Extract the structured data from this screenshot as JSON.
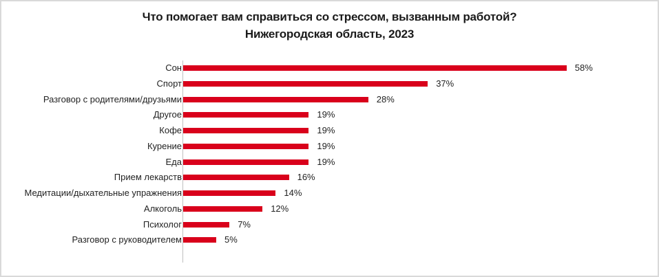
{
  "title": {
    "line1": "Что помогает вам справиться со стрессом, вызванным работой?",
    "line2": "Нижегородская область, 2023"
  },
  "colors": {
    "bar": "#d9001b",
    "axis": "#bfbfbf",
    "frame": "#d9d9d9"
  },
  "bars": [
    {
      "label": "Сон",
      "value": 58,
      "text": "58%"
    },
    {
      "label": "Спорт",
      "value": 37,
      "text": "37%"
    },
    {
      "label": "Разговор с родителями/друзьями",
      "value": 28,
      "text": "28%"
    },
    {
      "label": "Другое",
      "value": 19,
      "text": "19%"
    },
    {
      "label": "Кофе",
      "value": 19,
      "text": "19%"
    },
    {
      "label": "Курение",
      "value": 19,
      "text": "19%"
    },
    {
      "label": "Еда",
      "value": 19,
      "text": "19%"
    },
    {
      "label": "Прием лекарств",
      "value": 16,
      "text": "16%"
    },
    {
      "label": "Медитации/дыхательные упражнения",
      "value": 14,
      "text": "14%"
    },
    {
      "label": "Алкоголь",
      "value": 12,
      "text": "12%"
    },
    {
      "label": "Психолог",
      "value": 7,
      "text": "7%"
    },
    {
      "label": "Разговор с руководителем",
      "value": 5,
      "text": "5%"
    }
  ],
  "chart_data": {
    "type": "bar",
    "orientation": "horizontal",
    "title": "Что помогает вам справиться со стрессом, вызванным работой? Нижегородская область, 2023",
    "categories": [
      "Сон",
      "Спорт",
      "Разговор с родителями/друзьями",
      "Другое",
      "Кофе",
      "Курение",
      "Еда",
      "Прием лекарств",
      "Медитации/дыхательные упражнения",
      "Алкоголь",
      "Психолог",
      "Разговор с руководителем"
    ],
    "values": [
      58,
      37,
      28,
      19,
      19,
      19,
      19,
      16,
      14,
      12,
      7,
      5
    ],
    "unit": "%",
    "xlabel": "",
    "ylabel": "",
    "grid": false,
    "legend": null,
    "data_labels": true
  }
}
